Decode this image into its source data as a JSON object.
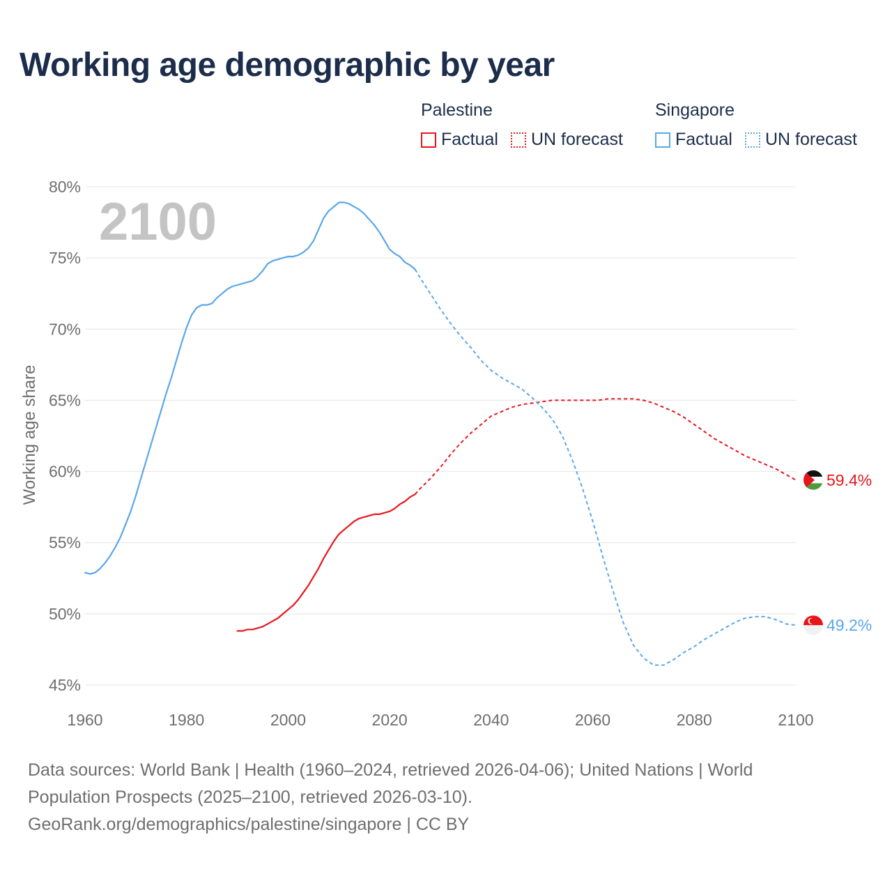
{
  "title": "Working age demographic by year",
  "legend": {
    "groups": [
      {
        "name": "Palestine",
        "factual_label": "Factual",
        "forecast_label": "UN forecast",
        "color": "#e8141c"
      },
      {
        "name": "Singapore",
        "factual_label": "Factual",
        "forecast_label": "UN forecast",
        "color": "#5aa6e8"
      }
    ]
  },
  "year_watermark": "2100",
  "footer": {
    "line1": "Data sources: World Bank | Health (1960–2024, retrieved 2026-04-06); United Nations | World",
    "line2": "Population Prospects (2025–2100, retrieved 2026-03-10).",
    "line3": "GeoRank.org/demographics/palestine/singapore | CC BY"
  },
  "chart_data": {
    "type": "line",
    "title": "Working age demographic by year",
    "xlabel": "",
    "ylabel": "Working age share",
    "xlim": [
      1960,
      2100
    ],
    "ylim": [
      45,
      80
    ],
    "x_ticks": [
      1960,
      1980,
      2000,
      2020,
      2040,
      2060,
      2080,
      2100
    ],
    "y_ticks": [
      45,
      50,
      55,
      60,
      65,
      70,
      75,
      80
    ],
    "y_tick_labels": [
      "45%",
      "50%",
      "55%",
      "60%",
      "65%",
      "70%",
      "75%",
      "80%"
    ],
    "grid": true,
    "forecast_start": 2025,
    "series": [
      {
        "name": "Palestine",
        "color": "#e8141c",
        "end_label": "59.4%",
        "flag": "palestine-flag",
        "points": [
          [
            1990,
            48.8
          ],
          [
            1991,
            48.8
          ],
          [
            1992,
            48.9
          ],
          [
            1993,
            48.9
          ],
          [
            1994,
            49.0
          ],
          [
            1995,
            49.1
          ],
          [
            1996,
            49.3
          ],
          [
            1997,
            49.5
          ],
          [
            1998,
            49.7
          ],
          [
            1999,
            50.0
          ],
          [
            2000,
            50.3
          ],
          [
            2001,
            50.6
          ],
          [
            2002,
            51.0
          ],
          [
            2003,
            51.5
          ],
          [
            2004,
            52.0
          ],
          [
            2005,
            52.6
          ],
          [
            2006,
            53.2
          ],
          [
            2007,
            53.9
          ],
          [
            2008,
            54.5
          ],
          [
            2009,
            55.1
          ],
          [
            2010,
            55.6
          ],
          [
            2011,
            55.9
          ],
          [
            2012,
            56.2
          ],
          [
            2013,
            56.5
          ],
          [
            2014,
            56.7
          ],
          [
            2015,
            56.8
          ],
          [
            2016,
            56.9
          ],
          [
            2017,
            57.0
          ],
          [
            2018,
            57.0
          ],
          [
            2019,
            57.1
          ],
          [
            2020,
            57.2
          ],
          [
            2021,
            57.4
          ],
          [
            2022,
            57.7
          ],
          [
            2023,
            57.9
          ],
          [
            2024,
            58.2
          ],
          [
            2025,
            58.4
          ],
          [
            2026,
            58.8
          ],
          [
            2028,
            59.5
          ],
          [
            2030,
            60.3
          ],
          [
            2032,
            61.2
          ],
          [
            2034,
            62.0
          ],
          [
            2036,
            62.7
          ],
          [
            2038,
            63.3
          ],
          [
            2040,
            63.9
          ],
          [
            2042,
            64.2
          ],
          [
            2044,
            64.5
          ],
          [
            2046,
            64.7
          ],
          [
            2048,
            64.8
          ],
          [
            2050,
            64.9
          ],
          [
            2052,
            65.0
          ],
          [
            2055,
            65.0
          ],
          [
            2058,
            65.0
          ],
          [
            2061,
            65.0
          ],
          [
            2063,
            65.1
          ],
          [
            2066,
            65.1
          ],
          [
            2068,
            65.1
          ],
          [
            2070,
            65.0
          ],
          [
            2072,
            64.8
          ],
          [
            2074,
            64.5
          ],
          [
            2076,
            64.2
          ],
          [
            2078,
            63.8
          ],
          [
            2080,
            63.3
          ],
          [
            2082,
            62.8
          ],
          [
            2084,
            62.3
          ],
          [
            2086,
            61.9
          ],
          [
            2088,
            61.5
          ],
          [
            2090,
            61.1
          ],
          [
            2092,
            60.8
          ],
          [
            2094,
            60.5
          ],
          [
            2096,
            60.2
          ],
          [
            2098,
            59.8
          ],
          [
            2100,
            59.4
          ]
        ]
      },
      {
        "name": "Singapore",
        "color": "#5aa6e8",
        "end_label": "49.2%",
        "flag": "singapore-flag",
        "points": [
          [
            1960,
            52.9
          ],
          [
            1961,
            52.8
          ],
          [
            1962,
            52.9
          ],
          [
            1963,
            53.2
          ],
          [
            1964,
            53.6
          ],
          [
            1965,
            54.1
          ],
          [
            1966,
            54.7
          ],
          [
            1967,
            55.4
          ],
          [
            1968,
            56.3
          ],
          [
            1969,
            57.2
          ],
          [
            1970,
            58.3
          ],
          [
            1971,
            59.5
          ],
          [
            1972,
            60.7
          ],
          [
            1973,
            61.9
          ],
          [
            1974,
            63.1
          ],
          [
            1975,
            64.3
          ],
          [
            1976,
            65.5
          ],
          [
            1977,
            66.6
          ],
          [
            1978,
            67.8
          ],
          [
            1979,
            69.0
          ],
          [
            1980,
            70.1
          ],
          [
            1981,
            71.0
          ],
          [
            1982,
            71.5
          ],
          [
            1983,
            71.7
          ],
          [
            1984,
            71.7
          ],
          [
            1985,
            71.8
          ],
          [
            1986,
            72.2
          ],
          [
            1987,
            72.5
          ],
          [
            1988,
            72.8
          ],
          [
            1989,
            73.0
          ],
          [
            1990,
            73.1
          ],
          [
            1991,
            73.2
          ],
          [
            1992,
            73.3
          ],
          [
            1993,
            73.4
          ],
          [
            1994,
            73.7
          ],
          [
            1995,
            74.1
          ],
          [
            1996,
            74.6
          ],
          [
            1997,
            74.8
          ],
          [
            1998,
            74.9
          ],
          [
            1999,
            75.0
          ],
          [
            2000,
            75.1
          ],
          [
            2001,
            75.1
          ],
          [
            2002,
            75.2
          ],
          [
            2003,
            75.4
          ],
          [
            2004,
            75.7
          ],
          [
            2005,
            76.2
          ],
          [
            2006,
            77.0
          ],
          [
            2007,
            77.8
          ],
          [
            2008,
            78.3
          ],
          [
            2009,
            78.6
          ],
          [
            2010,
            78.9
          ],
          [
            2011,
            78.9
          ],
          [
            2012,
            78.8
          ],
          [
            2013,
            78.6
          ],
          [
            2014,
            78.4
          ],
          [
            2015,
            78.1
          ],
          [
            2016,
            77.7
          ],
          [
            2017,
            77.3
          ],
          [
            2018,
            76.8
          ],
          [
            2019,
            76.2
          ],
          [
            2020,
            75.6
          ],
          [
            2021,
            75.3
          ],
          [
            2022,
            75.1
          ],
          [
            2023,
            74.7
          ],
          [
            2024,
            74.5
          ],
          [
            2025,
            74.2
          ],
          [
            2026,
            73.6
          ],
          [
            2028,
            72.5
          ],
          [
            2030,
            71.4
          ],
          [
            2032,
            70.4
          ],
          [
            2034,
            69.5
          ],
          [
            2036,
            68.7
          ],
          [
            2038,
            67.8
          ],
          [
            2040,
            67.1
          ],
          [
            2042,
            66.6
          ],
          [
            2044,
            66.2
          ],
          [
            2046,
            65.8
          ],
          [
            2048,
            65.2
          ],
          [
            2050,
            64.5
          ],
          [
            2052,
            63.7
          ],
          [
            2054,
            62.5
          ],
          [
            2056,
            60.8
          ],
          [
            2058,
            58.8
          ],
          [
            2060,
            56.5
          ],
          [
            2062,
            54.0
          ],
          [
            2064,
            51.6
          ],
          [
            2066,
            49.4
          ],
          [
            2068,
            47.8
          ],
          [
            2070,
            46.9
          ],
          [
            2072,
            46.4
          ],
          [
            2074,
            46.4
          ],
          [
            2076,
            46.8
          ],
          [
            2078,
            47.3
          ],
          [
            2080,
            47.7
          ],
          [
            2082,
            48.2
          ],
          [
            2084,
            48.6
          ],
          [
            2086,
            49.0
          ],
          [
            2088,
            49.4
          ],
          [
            2090,
            49.7
          ],
          [
            2092,
            49.8
          ],
          [
            2094,
            49.8
          ],
          [
            2096,
            49.6
          ],
          [
            2098,
            49.3
          ],
          [
            2100,
            49.2
          ]
        ]
      }
    ]
  }
}
